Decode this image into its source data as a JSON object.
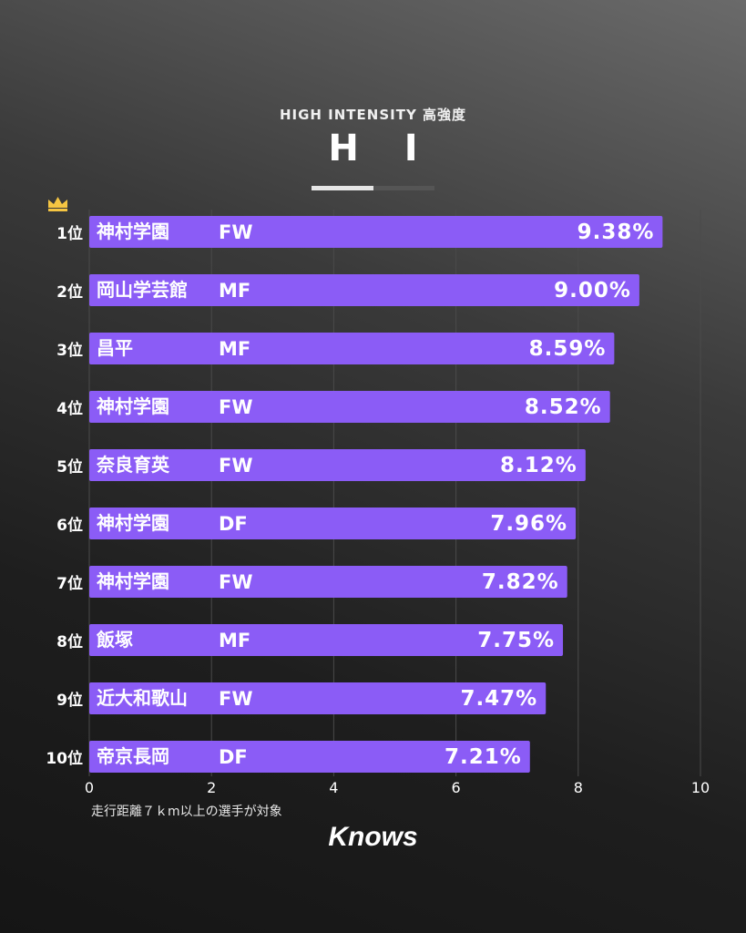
{
  "header": {
    "subtitle": "HIGH INTENSITY 高強度",
    "title": "H I"
  },
  "colors": {
    "bar": "#8b5cf6",
    "text": "#ffffff",
    "grid": "#4a4a4a",
    "crown": "#f5c542"
  },
  "icons": {
    "first_place": "crown-icon"
  },
  "chart_data": {
    "type": "bar",
    "orientation": "horizontal",
    "categories": [
      "1位",
      "2位",
      "3位",
      "4位",
      "5位",
      "6位",
      "7位",
      "8位",
      "9位",
      "10位"
    ],
    "schools": [
      "神村学園",
      "岡山学芸館",
      "昌平",
      "神村学園",
      "奈良育英",
      "神村学園",
      "神村学園",
      "飯塚",
      "近大和歌山",
      "帝京長岡"
    ],
    "positions": [
      "FW",
      "MF",
      "MF",
      "FW",
      "FW",
      "DF",
      "FW",
      "MF",
      "FW",
      "DF"
    ],
    "values": [
      9.38,
      9.0,
      8.59,
      8.52,
      8.12,
      7.96,
      7.82,
      7.75,
      7.47,
      7.21
    ],
    "value_labels": [
      "9.38%",
      "9.00%",
      "8.59%",
      "8.52%",
      "8.12%",
      "7.96%",
      "7.82%",
      "7.75%",
      "7.47%",
      "7.21%"
    ],
    "xlim": [
      0,
      10
    ],
    "xticks": [
      "0",
      "2",
      "4",
      "6",
      "8",
      "10"
    ],
    "grid": true
  },
  "footnote": "走行距離７ｋm以上の選手が対象",
  "brand": "Knows"
}
